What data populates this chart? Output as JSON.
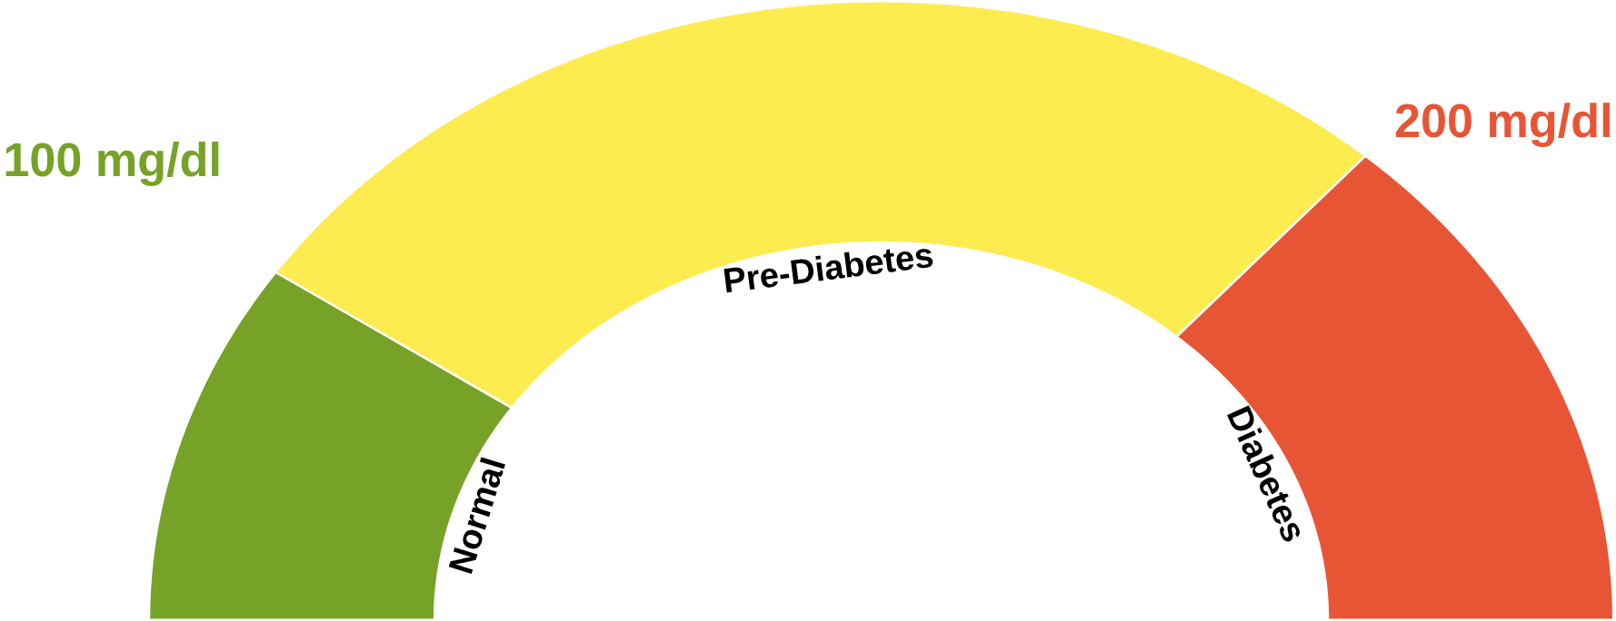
{
  "chart_data": {
    "type": "donut",
    "categories": [
      "Normal",
      "Pre-Diabetes",
      "Diabetes"
    ],
    "values": [
      19,
      54,
      27
    ],
    "colors": [
      "#76a227",
      "#fdec50",
      "#e85535"
    ],
    "annotations": [
      "100 mg/dl",
      "200 mg/dl"
    ]
  }
}
